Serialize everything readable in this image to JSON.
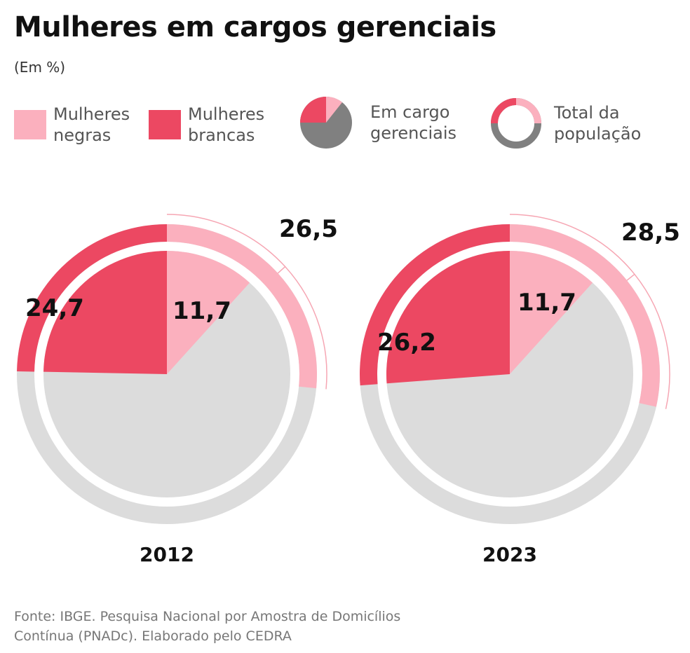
{
  "header": {
    "title": "Mulheres em cargos gerenciais",
    "subtitle": "(Em %)"
  },
  "legend": {
    "negras": "Mulheres negras",
    "brancas": "Mulheres brancas",
    "em_cargo": "Em cargo gerenciais",
    "total": "Total da população"
  },
  "colors": {
    "negras": "#fbb0be",
    "brancas": "#ec4862",
    "rest_inner": "#dcdcdc",
    "rest_outer": "#dcdcdc",
    "legend_gray": "#808080",
    "line": "#f6a6b3"
  },
  "chart_data": {
    "type": "pie",
    "title": "Mulheres em cargos gerenciais",
    "unit": "%",
    "groups": [
      {
        "year": "2012",
        "inner": {
          "negras": 11.7,
          "brancas": 24.7
        },
        "outer": {
          "negras": 26.5,
          "brancas": 24.7
        },
        "labels": {
          "inner_negras": "11,7",
          "brancas": "24,7",
          "outer_negras": "26,5"
        }
      },
      {
        "year": "2023",
        "inner": {
          "negras": 11.7,
          "brancas": 26.2
        },
        "outer": {
          "negras": 28.5,
          "brancas": 26.2
        },
        "labels": {
          "inner_negras": "11,7",
          "brancas": "26,2",
          "outer_negras": "28,5"
        }
      }
    ]
  },
  "source": "Fonte: IBGE. Pesquisa Nacional por Amostra de Domicílios Contínua (PNADc). Elaborado pelo CEDRA"
}
